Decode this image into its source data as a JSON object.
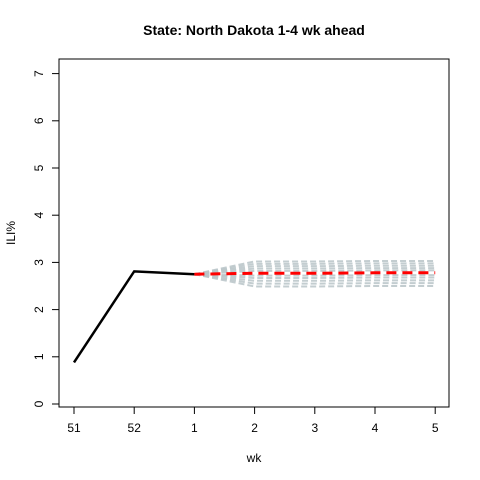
{
  "chart_data": {
    "type": "line",
    "title": "State: North Dakota 1-4 wk ahead",
    "xlabel": "wk",
    "ylabel": "ILI%",
    "x_ticks": [
      "51",
      "52",
      "1",
      "2",
      "3",
      "4",
      "5"
    ],
    "ylim": [
      0,
      7
    ],
    "y_ticks": [
      0,
      1,
      2,
      3,
      4,
      5,
      6,
      7
    ],
    "grid": false,
    "legend": "none",
    "observed": {
      "x": [
        "51",
        "52",
        "1"
      ],
      "y": [
        0.88,
        2.81,
        2.75
      ],
      "color": "#000000"
    },
    "forecast_mean": {
      "x": [
        "1",
        "2",
        "3",
        "4",
        "5"
      ],
      "y": [
        2.75,
        2.77,
        2.77,
        2.78,
        2.78
      ],
      "color": "#ff0000"
    },
    "forecast_samples": {
      "color": "#b8c4c8",
      "x": [
        "1",
        "2",
        "3",
        "4",
        "5"
      ],
      "offsets": [
        -0.28,
        -0.22,
        -0.16,
        -0.1,
        -0.05,
        0.05,
        0.1,
        0.15,
        0.2,
        0.25
      ]
    }
  }
}
